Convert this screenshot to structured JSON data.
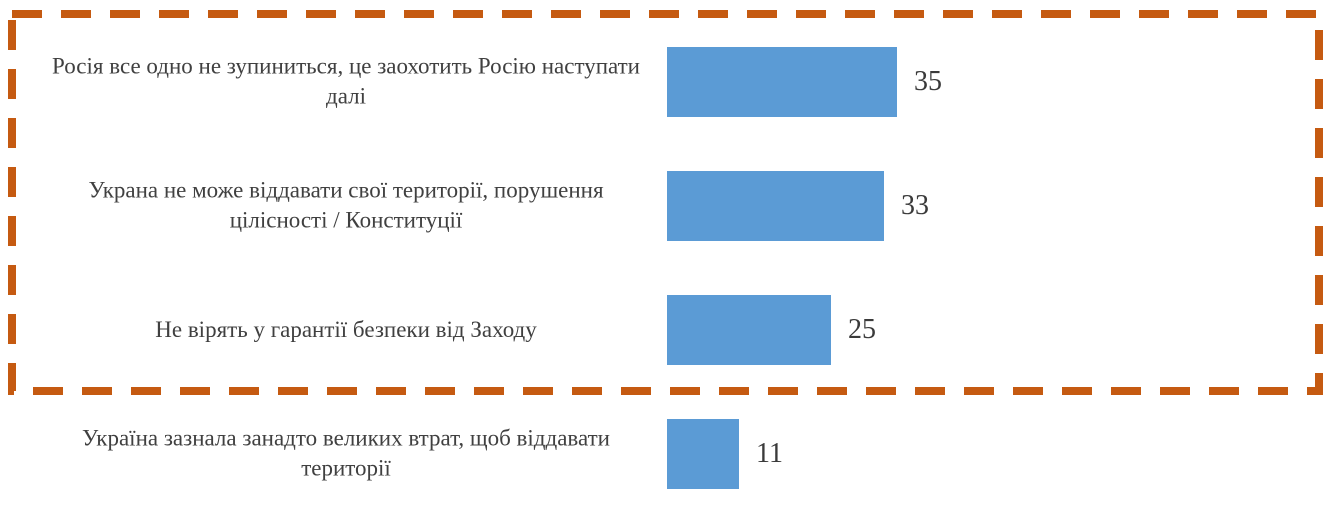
{
  "chart_data": {
    "type": "bar",
    "orientation": "horizontal",
    "title": "",
    "xlabel": "",
    "ylabel": "",
    "categories": [
      "Росія все одно не зупиниться, це заохотить Росію наступати далі",
      "Украна не може віддавати свої території, порушення цілісності / Конституції",
      "Не вірять у гарантії безпеки від Заходу",
      "Україна зазнала занадто великих втрат, щоб віддавати території"
    ],
    "values": [
      35,
      33,
      25,
      11
    ],
    "value_labels": [
      "35",
      "33",
      "25",
      "11"
    ],
    "xlim": [
      0,
      35
    ],
    "grid": false,
    "legend": false,
    "axis_lines": false,
    "bar_color": "#5B9BD5",
    "label_color": "#404040",
    "value_color": "#3A3A3A",
    "annotations": {
      "highlight_box": {
        "applies_to_categories": [
          0,
          1,
          2
        ],
        "style": "dashed",
        "border_color": "#C55A11"
      }
    }
  }
}
